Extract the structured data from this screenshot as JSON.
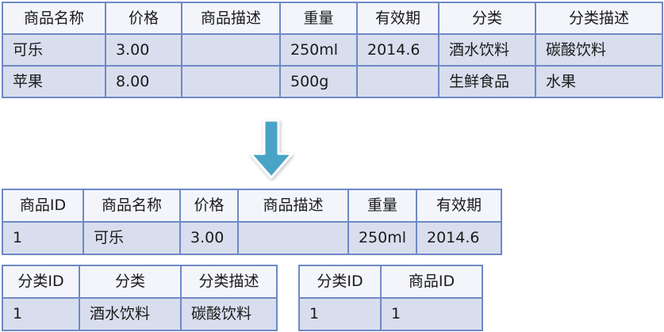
{
  "source_table": {
    "headers": [
      "商品名称",
      "价格",
      "商品描述",
      "重量",
      "有效期",
      "分类",
      "分类描述"
    ],
    "rows": [
      [
        "可乐",
        "3.00",
        "",
        "250ml",
        "2014.6",
        "酒水饮料",
        "碳酸饮料"
      ],
      [
        "苹果",
        "8.00",
        "",
        "500g",
        "",
        "生鲜食品",
        "水果"
      ]
    ]
  },
  "arrow": {
    "direction": "down",
    "color": "#4aa3c6"
  },
  "product_table": {
    "headers": [
      "商品ID",
      "商品名称",
      "价格",
      "商品描述",
      "重量",
      "有效期"
    ],
    "rows": [
      [
        "1",
        "可乐",
        "3.00",
        "",
        "250ml",
        "2014.6"
      ]
    ]
  },
  "category_table": {
    "headers": [
      "分类ID",
      "分类",
      "分类描述"
    ],
    "rows": [
      [
        "1",
        "酒水饮料",
        "碳酸饮料"
      ]
    ]
  },
  "link_table": {
    "headers": [
      "分类ID",
      "商品ID"
    ],
    "rows": [
      [
        "1",
        "1"
      ]
    ]
  },
  "colors": {
    "border": "#6f89c4",
    "header_bg": "#f3f5fb",
    "row_bg": "#d8deed"
  }
}
